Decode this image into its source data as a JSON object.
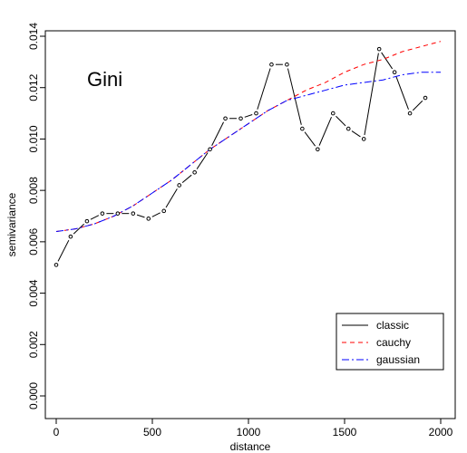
{
  "chart_data": {
    "type": "line",
    "title": "",
    "annotation": "Gini",
    "xlabel": "distance",
    "ylabel": "semivariance",
    "xlim": [
      0,
      2000
    ],
    "ylim": [
      0,
      0.014
    ],
    "xticks": [
      0,
      500,
      1000,
      1500,
      2000
    ],
    "yticks": [
      0.0,
      0.002,
      0.004,
      0.006,
      0.008,
      0.01,
      0.012,
      0.014
    ],
    "xtick_labels": [
      "0",
      "500",
      "1000",
      "1500",
      "2000"
    ],
    "ytick_labels": [
      "0.000",
      "0.002",
      "0.004",
      "0.006",
      "0.008",
      "0.010",
      "0.012",
      "0.014"
    ],
    "grid": false,
    "legend_position": "bottom-right",
    "series": [
      {
        "name": "classic",
        "type": "line+points",
        "color": "#000000",
        "dash": "solid",
        "x": [
          0,
          75,
          160,
          240,
          320,
          400,
          480,
          560,
          640,
          720,
          800,
          880,
          960,
          1040,
          1120,
          1200,
          1280,
          1360,
          1440,
          1520,
          1600,
          1680,
          1760,
          1840,
          1920
        ],
        "y": [
          0.0051,
          0.0062,
          0.0068,
          0.0071,
          0.0071,
          0.0071,
          0.0069,
          0.0072,
          0.0082,
          0.0087,
          0.0096,
          0.0108,
          0.0108,
          0.011,
          0.0129,
          0.0129,
          0.0104,
          0.0096,
          0.011,
          0.0104,
          0.01,
          0.0135,
          0.0126,
          0.011,
          0.0116
        ]
      },
      {
        "name": "cauchy",
        "type": "line",
        "color": "#ff0000",
        "dash": "dashed",
        "x": [
          0,
          100,
          200,
          300,
          400,
          500,
          600,
          700,
          800,
          900,
          1000,
          1100,
          1200,
          1300,
          1400,
          1500,
          1600,
          1700,
          1800,
          1900,
          2000
        ],
        "y": [
          0.0064,
          0.0065,
          0.0067,
          0.007,
          0.0074,
          0.0079,
          0.0084,
          0.009,
          0.0096,
          0.0101,
          0.0106,
          0.0111,
          0.0115,
          0.0119,
          0.0122,
          0.0126,
          0.0129,
          0.0131,
          0.0134,
          0.0136,
          0.0138
        ]
      },
      {
        "name": "gaussian",
        "type": "line",
        "color": "#0000ff",
        "dash": "dotdash",
        "x": [
          0,
          100,
          200,
          300,
          400,
          500,
          600,
          700,
          800,
          900,
          1000,
          1100,
          1200,
          1300,
          1400,
          1500,
          1600,
          1700,
          1800,
          1900,
          2000
        ],
        "y": [
          0.0064,
          0.0065,
          0.0067,
          0.007,
          0.0074,
          0.0079,
          0.0084,
          0.009,
          0.0096,
          0.0101,
          0.0106,
          0.0111,
          0.0115,
          0.0117,
          0.0119,
          0.0121,
          0.0122,
          0.0123,
          0.0125,
          0.0126,
          0.0126
        ]
      }
    ]
  }
}
